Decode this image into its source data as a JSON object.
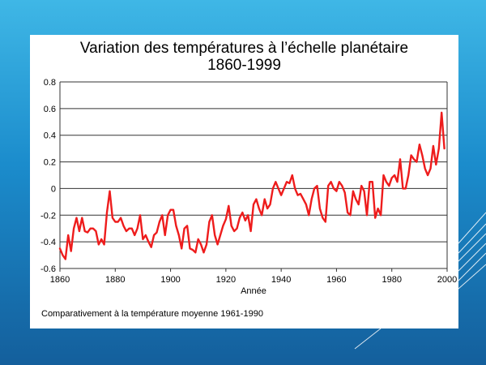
{
  "chart_data": {
    "type": "line",
    "title": "Variation des températures à l’échelle planétaire",
    "subtitle": "1860-1999",
    "xlabel": "Année",
    "ylabel": "",
    "note": "Comparativement à la température moyenne 1961-1990",
    "xlim": [
      1860,
      2000
    ],
    "ylim": [
      -0.6,
      0.8
    ],
    "xticks": [
      1860,
      1880,
      1900,
      1920,
      1940,
      1960,
      1980,
      2000
    ],
    "yticks": [
      -0.6,
      -0.4,
      -0.2,
      0,
      0.2,
      0.4,
      0.6,
      0.8
    ],
    "ytick_labels": [
      "-0.6",
      "-0.4",
      "-0.2",
      "0",
      "0.2",
      "0.4",
      "0.6",
      "0.8"
    ],
    "grid": "horizontal",
    "series": [
      {
        "color": "#ee1c1c",
        "x": [
          1860,
          1861,
          1862,
          1863,
          1864,
          1865,
          1866,
          1867,
          1868,
          1869,
          1870,
          1871,
          1872,
          1873,
          1874,
          1875,
          1876,
          1877,
          1878,
          1879,
          1880,
          1881,
          1882,
          1883,
          1884,
          1885,
          1886,
          1887,
          1888,
          1889,
          1890,
          1891,
          1892,
          1893,
          1894,
          1895,
          1896,
          1897,
          1898,
          1899,
          1900,
          1901,
          1902,
          1903,
          1904,
          1905,
          1906,
          1907,
          1908,
          1909,
          1910,
          1911,
          1912,
          1913,
          1914,
          1915,
          1916,
          1917,
          1918,
          1919,
          1920,
          1921,
          1922,
          1923,
          1924,
          1925,
          1926,
          1927,
          1928,
          1929,
          1930,
          1931,
          1932,
          1933,
          1934,
          1935,
          1936,
          1937,
          1938,
          1939,
          1940,
          1941,
          1942,
          1943,
          1944,
          1945,
          1946,
          1947,
          1948,
          1949,
          1950,
          1951,
          1952,
          1953,
          1954,
          1955,
          1956,
          1957,
          1958,
          1959,
          1960,
          1961,
          1962,
          1963,
          1964,
          1965,
          1966,
          1967,
          1968,
          1969,
          1970,
          1971,
          1972,
          1973,
          1974,
          1975,
          1976,
          1977,
          1978,
          1979,
          1980,
          1981,
          1982,
          1983,
          1984,
          1985,
          1986,
          1987,
          1988,
          1989,
          1990,
          1991,
          1992,
          1993,
          1994,
          1995,
          1996,
          1997,
          1998,
          1999
        ],
        "values": [
          -0.45,
          -0.5,
          -0.53,
          -0.35,
          -0.47,
          -0.3,
          -0.22,
          -0.32,
          -0.22,
          -0.32,
          -0.33,
          -0.3,
          -0.3,
          -0.32,
          -0.42,
          -0.38,
          -0.42,
          -0.18,
          -0.02,
          -0.22,
          -0.25,
          -0.25,
          -0.22,
          -0.28,
          -0.32,
          -0.3,
          -0.3,
          -0.35,
          -0.3,
          -0.2,
          -0.38,
          -0.35,
          -0.4,
          -0.44,
          -0.35,
          -0.33,
          -0.25,
          -0.2,
          -0.35,
          -0.2,
          -0.16,
          -0.16,
          -0.28,
          -0.35,
          -0.45,
          -0.3,
          -0.28,
          -0.45,
          -0.46,
          -0.48,
          -0.38,
          -0.42,
          -0.48,
          -0.42,
          -0.25,
          -0.2,
          -0.35,
          -0.42,
          -0.35,
          -0.28,
          -0.23,
          -0.13,
          -0.28,
          -0.32,
          -0.3,
          -0.22,
          -0.18,
          -0.24,
          -0.2,
          -0.32,
          -0.12,
          -0.08,
          -0.15,
          -0.2,
          -0.08,
          -0.15,
          -0.12,
          0.0,
          0.05,
          0.0,
          -0.05,
          0.0,
          0.05,
          0.04,
          0.1,
          0.0,
          -0.05,
          -0.04,
          -0.08,
          -0.12,
          -0.2,
          -0.08,
          0.0,
          0.02,
          -0.15,
          -0.22,
          -0.25,
          0.02,
          0.05,
          0.0,
          -0.02,
          0.05,
          0.02,
          -0.03,
          -0.18,
          -0.2,
          -0.02,
          -0.08,
          -0.12,
          0.02,
          -0.02,
          -0.2,
          0.05,
          0.05,
          -0.22,
          -0.15,
          -0.2,
          0.1,
          0.05,
          0.02,
          0.08,
          0.1,
          0.05,
          0.22,
          0.0,
          0.0,
          0.1,
          0.25,
          0.22,
          0.2,
          0.33,
          0.25,
          0.15,
          0.1,
          0.15,
          0.32,
          0.18,
          0.3,
          0.57,
          0.3
        ]
      }
    ]
  }
}
